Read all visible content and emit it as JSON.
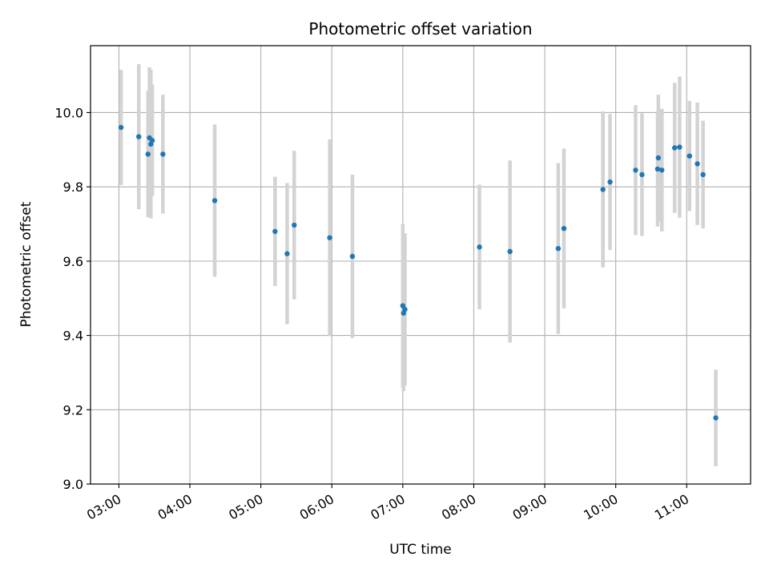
{
  "chart_data": {
    "type": "scatter",
    "title": "Photometric offset variation",
    "xlabel": "UTC time",
    "ylabel": "Photometric offset",
    "x_ticks": [
      "03:00",
      "04:00",
      "05:00",
      "06:00",
      "07:00",
      "08:00",
      "09:00",
      "10:00",
      "11:00"
    ],
    "x_tick_hours": [
      3,
      4,
      5,
      6,
      7,
      8,
      9,
      10,
      11
    ],
    "xlim": [
      "02:36",
      "11:54"
    ],
    "xlim_hours": [
      2.6,
      11.9
    ],
    "y_ticks": [
      "9.0",
      "9.2",
      "9.4",
      "9.6",
      "9.8",
      "10.0"
    ],
    "y_tick_values": [
      9.0,
      9.2,
      9.4,
      9.6,
      9.8,
      10.0
    ],
    "ylim": [
      9.0,
      10.18
    ],
    "grid": true,
    "colors": {
      "points": "#1f77b4",
      "errorbars": "#d3d3d3",
      "grid": "#b0b0b0"
    },
    "points": [
      {
        "time": "03:02",
        "hour": 3.03,
        "offset": 9.96,
        "err": 0.155
      },
      {
        "time": "03:17",
        "hour": 3.28,
        "offset": 9.935,
        "err": 0.195
      },
      {
        "time": "03:25",
        "hour": 3.41,
        "offset": 9.888,
        "err": 0.17
      },
      {
        "time": "03:26",
        "hour": 3.43,
        "offset": 9.932,
        "err": 0.19
      },
      {
        "time": "03:27",
        "hour": 3.45,
        "offset": 9.915,
        "err": 0.2
      },
      {
        "time": "03:28",
        "hour": 3.47,
        "offset": 9.925,
        "err": 0.15
      },
      {
        "time": "03:37",
        "hour": 3.62,
        "offset": 9.888,
        "err": 0.16
      },
      {
        "time": "04:21",
        "hour": 4.35,
        "offset": 9.763,
        "err": 0.205
      },
      {
        "time": "05:12",
        "hour": 5.2,
        "offset": 9.68,
        "err": 0.147
      },
      {
        "time": "05:22",
        "hour": 5.37,
        "offset": 9.62,
        "err": 0.19
      },
      {
        "time": "05:28",
        "hour": 5.47,
        "offset": 9.697,
        "err": 0.2
      },
      {
        "time": "05:58",
        "hour": 5.97,
        "offset": 9.663,
        "err": 0.265
      },
      {
        "time": "06:17",
        "hour": 6.29,
        "offset": 9.613,
        "err": 0.22
      },
      {
        "time": "07:00",
        "hour": 7.0,
        "offset": 9.48,
        "err": 0.22
      },
      {
        "time": "07:01",
        "hour": 7.01,
        "offset": 9.46,
        "err": 0.21
      },
      {
        "time": "07:02",
        "hour": 7.03,
        "offset": 9.47,
        "err": 0.205
      },
      {
        "time": "08:05",
        "hour": 8.08,
        "offset": 9.638,
        "err": 0.168
      },
      {
        "time": "08:31",
        "hour": 8.51,
        "offset": 9.626,
        "err": 0.245
      },
      {
        "time": "09:11",
        "hour": 9.19,
        "offset": 9.634,
        "err": 0.23
      },
      {
        "time": "09:16",
        "hour": 9.27,
        "offset": 9.688,
        "err": 0.215
      },
      {
        "time": "09:49",
        "hour": 9.82,
        "offset": 9.793,
        "err": 0.21
      },
      {
        "time": "09:55",
        "hour": 9.92,
        "offset": 9.813,
        "err": 0.183
      },
      {
        "time": "10:17",
        "hour": 10.28,
        "offset": 9.845,
        "err": 0.175
      },
      {
        "time": "10:22",
        "hour": 10.37,
        "offset": 9.833,
        "err": 0.165
      },
      {
        "time": "10:35",
        "hour": 10.59,
        "offset": 9.848,
        "err": 0.155
      },
      {
        "time": "10:36",
        "hour": 10.6,
        "offset": 9.878,
        "err": 0.17
      },
      {
        "time": "10:39",
        "hour": 10.65,
        "offset": 9.845,
        "err": 0.165
      },
      {
        "time": "10:50",
        "hour": 10.83,
        "offset": 9.905,
        "err": 0.175
      },
      {
        "time": "10:54",
        "hour": 10.9,
        "offset": 9.907,
        "err": 0.19
      },
      {
        "time": "11:02",
        "hour": 11.04,
        "offset": 9.883,
        "err": 0.148
      },
      {
        "time": "11:09",
        "hour": 11.15,
        "offset": 9.862,
        "err": 0.165
      },
      {
        "time": "11:14",
        "hour": 11.23,
        "offset": 9.833,
        "err": 0.145
      },
      {
        "time": "11:25",
        "hour": 11.41,
        "offset": 9.178,
        "err": 0.13
      }
    ]
  }
}
